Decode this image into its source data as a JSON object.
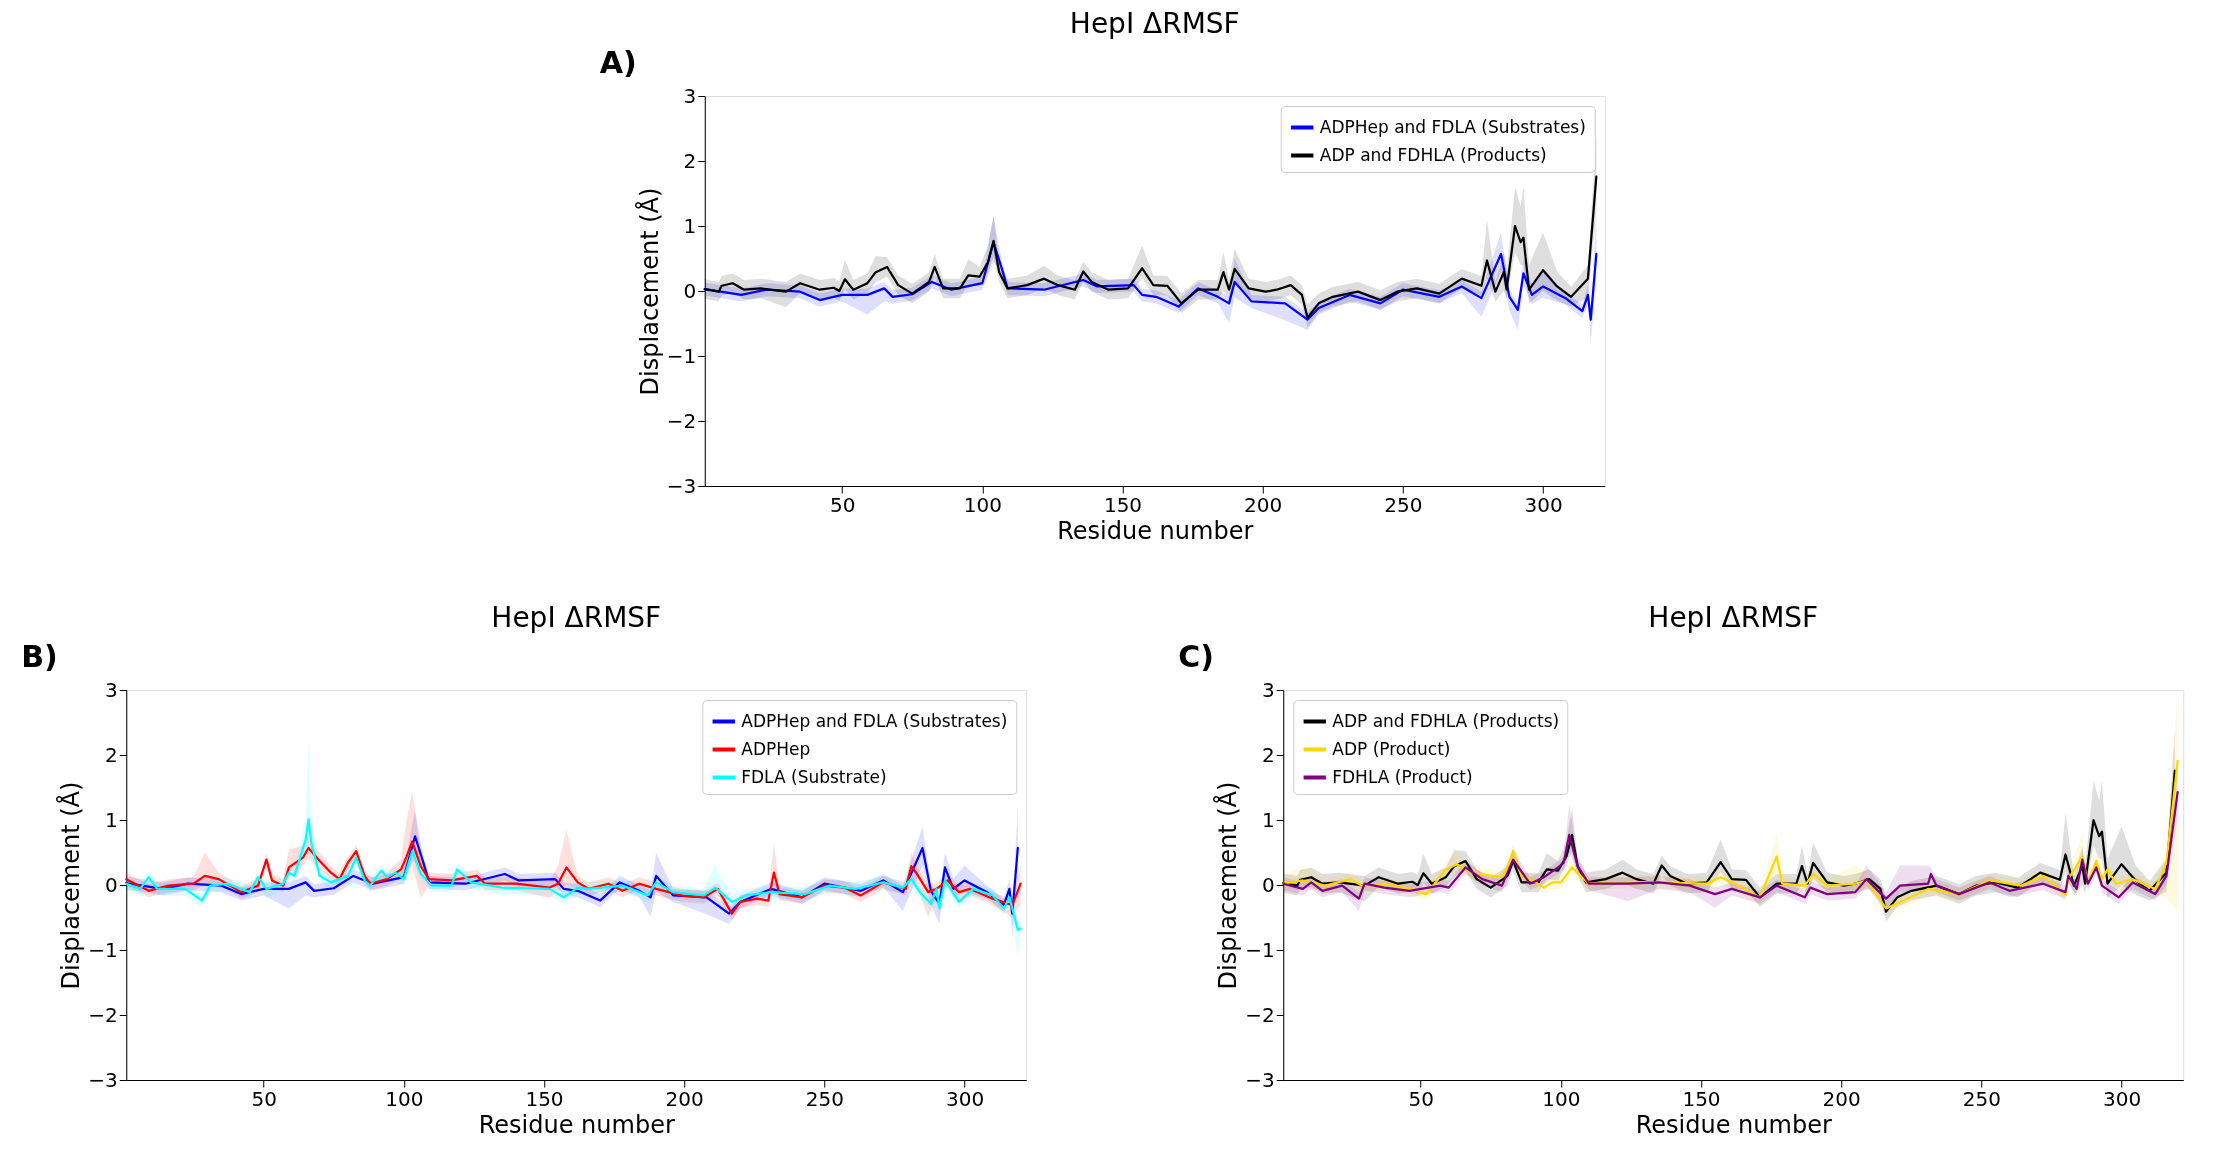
{
  "chart_data": [
    {
      "type": "line",
      "title": "HepI ΔRMSF",
      "xlabel": "Residue number",
      "ylabel": "Displacement (Å)",
      "annotations": [
        "A)"
      ],
      "xlim": [
        1,
        322
      ],
      "ylim": [
        -3,
        3
      ],
      "xticks": [
        50,
        100,
        150,
        200,
        250,
        300
      ],
      "yticks": [
        -3,
        -2,
        -1,
        0,
        1,
        2,
        3
      ],
      "legend": "top right",
      "grid": false,
      "series": [
        {
          "name": "ADPHep and FDLA (Substrates)",
          "color": "#0000ff",
          "x": [
            1,
            14,
            23,
            35,
            42,
            50,
            59,
            65,
            68,
            75,
            82,
            89,
            100,
            104,
            107,
            109,
            122,
            136,
            141,
            154,
            157,
            162,
            170,
            177,
            184,
            188,
            190,
            196,
            208,
            216,
            220,
            231,
            242,
            250,
            263,
            271,
            278,
            285,
            288,
            291,
            293,
            296,
            300,
            308,
            314,
            316,
            317,
            319
          ],
          "values": [
            0.03,
            -0.06,
            0.02,
            -0.01,
            -0.14,
            -0.06,
            -0.06,
            0.04,
            -0.09,
            -0.05,
            0.14,
            0.02,
            0.12,
            0.75,
            0.34,
            0.04,
            0.02,
            0.17,
            0.07,
            0.09,
            -0.06,
            -0.09,
            -0.24,
            0.04,
            -0.09,
            -0.19,
            0.14,
            -0.16,
            -0.19,
            -0.44,
            -0.26,
            -0.06,
            -0.19,
            0.02,
            -0.09,
            0.07,
            -0.11,
            0.57,
            -0.09,
            -0.29,
            0.27,
            -0.06,
            0.07,
            -0.11,
            -0.31,
            -0.06,
            -0.44,
            0.57
          ],
          "lower": [
            -0.07,
            -0.16,
            -0.08,
            -0.11,
            -0.24,
            -0.16,
            -0.36,
            -0.16,
            -0.19,
            -0.15,
            0.04,
            -0.08,
            0.02,
            0.45,
            0.24,
            -0.06,
            -0.08,
            0.07,
            -0.03,
            -0.01,
            -0.16,
            -0.19,
            -0.34,
            -0.06,
            -0.19,
            -0.49,
            -0.1,
            -0.26,
            -0.45,
            -0.6,
            -0.36,
            -0.16,
            -0.29,
            -0.08,
            -0.19,
            -0.03,
            -0.4,
            0.3,
            -0.3,
            -0.6,
            0.1,
            -0.2,
            -0.1,
            -0.21,
            -0.41,
            -0.2,
            -0.8,
            0.2
          ],
          "upper": [
            0.13,
            0.04,
            0.12,
            0.09,
            -0.04,
            0.04,
            0.04,
            0.14,
            0.01,
            0.05,
            0.24,
            0.12,
            0.22,
            1.15,
            0.44,
            0.14,
            0.12,
            0.27,
            0.17,
            0.19,
            0.04,
            0.01,
            -0.14,
            0.14,
            0.01,
            -0.09,
            0.5,
            -0.06,
            -0.09,
            -0.34,
            -0.16,
            0.04,
            -0.09,
            0.12,
            0.01,
            0.17,
            -0.01,
            0.9,
            0.01,
            -0.19,
            0.5,
            0.1,
            0.3,
            -0.01,
            -0.21,
            0.1,
            -0.34,
            1.2
          ]
        },
        {
          "name": "ADP and FDHLA (Products)",
          "color": "#000000",
          "x": [
            1,
            6,
            7,
            11,
            15,
            21,
            30,
            35,
            42,
            47,
            49,
            51,
            54,
            59,
            62,
            66,
            70,
            75,
            81,
            83,
            86,
            92,
            95,
            99,
            102,
            104,
            106,
            109,
            116,
            122,
            127,
            133,
            136,
            139,
            145,
            152,
            157,
            161,
            166,
            171,
            177,
            184,
            186,
            188,
            190,
            195,
            201,
            205,
            210,
            214,
            216,
            220,
            225,
            234,
            242,
            248,
            255,
            263,
            271,
            278,
            280,
            283,
            286,
            287,
            290,
            292,
            293,
            295,
            300,
            305,
            310,
            316,
            319
          ],
          "values": [
            0.03,
            -0.01,
            0.08,
            0.12,
            0.02,
            0.04,
            -0.01,
            0.12,
            0.02,
            0.05,
            0,
            0.18,
            0.02,
            0.12,
            0.29,
            0.37,
            0.09,
            -0.04,
            0.14,
            0.37,
            0.04,
            0.04,
            0.24,
            0.22,
            0.44,
            0.77,
            0.29,
            0.04,
            0.09,
            0.19,
            0.09,
            0.02,
            0.3,
            0.14,
            0.02,
            0.04,
            0.35,
            0.09,
            0.08,
            -0.19,
            0.02,
            0.02,
            0.29,
            0.02,
            0.34,
            0.04,
            -0.01,
            0.02,
            0.09,
            -0.06,
            -0.41,
            -0.19,
            -0.09,
            -0.01,
            -0.14,
            -0.01,
            0.04,
            -0.04,
            0.19,
            0.08,
            0.47,
            -0.01,
            0.29,
            0.02,
            1.0,
            0.75,
            0.82,
            0.02,
            0.32,
            0.07,
            -0.09,
            0.19,
            1.76
          ],
          "lower": [
            -0.12,
            -0.16,
            -0.07,
            -0.03,
            -0.13,
            -0.11,
            -0.25,
            -0.03,
            -0.13,
            -0.1,
            -0.15,
            0.03,
            -0.13,
            -0.03,
            0.14,
            0.22,
            -0.06,
            -0.19,
            -0.01,
            0.22,
            -0.11,
            -0.11,
            0.09,
            0.07,
            0.29,
            0.52,
            0.14,
            -0.11,
            -0.06,
            0.04,
            -0.06,
            -0.13,
            0.15,
            -0.01,
            -0.13,
            -0.11,
            0.2,
            -0.06,
            -0.07,
            -0.34,
            -0.13,
            -0.13,
            0.0,
            -0.13,
            0.1,
            -0.11,
            -0.16,
            -0.13,
            -0.06,
            -0.21,
            -0.56,
            -0.34,
            -0.24,
            -0.16,
            -0.29,
            -0.16,
            -0.11,
            -0.19,
            0.04,
            -0.07,
            0.2,
            -0.16,
            0.0,
            -0.13,
            0.6,
            0.4,
            0.4,
            -0.2,
            0.0,
            -0.15,
            -0.24,
            -0.1,
            1.2
          ],
          "upper": [
            0.18,
            0.14,
            0.23,
            0.27,
            0.17,
            0.19,
            0.14,
            0.27,
            0.17,
            0.2,
            0.15,
            0.48,
            0.17,
            0.27,
            0.54,
            0.52,
            0.24,
            0.11,
            0.29,
            0.57,
            0.19,
            0.19,
            0.49,
            0.37,
            0.69,
            1.17,
            0.44,
            0.19,
            0.24,
            0.39,
            0.24,
            0.17,
            0.45,
            0.29,
            0.17,
            0.19,
            0.7,
            0.24,
            0.23,
            -0.04,
            0.17,
            0.17,
            0.6,
            0.17,
            0.65,
            0.19,
            0.14,
            0.17,
            0.24,
            0.09,
            -0.2,
            -0.04,
            0.06,
            0.14,
            0.01,
            0.14,
            0.19,
            0.11,
            0.34,
            0.23,
            1.1,
            0.14,
            0.6,
            0.3,
            1.6,
            1.3,
            1.6,
            0.4,
            0.9,
            0.3,
            0.06,
            0.4,
            2.4
          ]
        }
      ]
    },
    {
      "type": "line",
      "title": "HepI ΔRMSF",
      "xlabel": "Residue number",
      "ylabel": "Displacement (Å)",
      "annotations": [
        "B)"
      ],
      "xlim": [
        1,
        322
      ],
      "ylim": [
        -3,
        3
      ],
      "xticks": [
        50,
        100,
        150,
        200,
        250,
        300
      ],
      "yticks": [
        -3,
        -2,
        -1,
        0,
        1,
        2,
        3
      ],
      "legend": "top right",
      "grid": false,
      "series": [
        {
          "name": "ADPHep and FDLA (Substrates)",
          "color": "#0000ff",
          "x": [
            1,
            14,
            23,
            35,
            42,
            50,
            59,
            65,
            68,
            75,
            82,
            89,
            100,
            104,
            107,
            109,
            122,
            136,
            141,
            154,
            157,
            162,
            170,
            177,
            184,
            188,
            190,
            196,
            208,
            216,
            220,
            231,
            242,
            250,
            263,
            271,
            278,
            285,
            288,
            291,
            293,
            296,
            300,
            308,
            314,
            316,
            317,
            319
          ],
          "values": [
            0.03,
            -0.06,
            0.02,
            -0.01,
            -0.14,
            -0.06,
            -0.06,
            0.04,
            -0.09,
            -0.05,
            0.14,
            0.02,
            0.12,
            0.75,
            0.34,
            0.04,
            0.02,
            0.17,
            0.07,
            0.09,
            -0.06,
            -0.09,
            -0.24,
            0.04,
            -0.09,
            -0.19,
            0.14,
            -0.16,
            -0.19,
            -0.44,
            -0.26,
            -0.06,
            -0.19,
            0.02,
            -0.09,
            0.07,
            -0.11,
            0.57,
            -0.09,
            -0.29,
            0.27,
            -0.06,
            0.07,
            -0.11,
            -0.31,
            -0.06,
            -0.44,
            0.57
          ],
          "lower": [
            -0.07,
            -0.16,
            -0.08,
            -0.11,
            -0.24,
            -0.16,
            -0.36,
            -0.16,
            -0.19,
            -0.15,
            0.04,
            -0.08,
            0.02,
            0.45,
            0.24,
            -0.06,
            -0.08,
            0.07,
            -0.03,
            -0.01,
            -0.16,
            -0.19,
            -0.34,
            -0.06,
            -0.19,
            -0.49,
            -0.1,
            -0.26,
            -0.45,
            -0.6,
            -0.36,
            -0.16,
            -0.29,
            -0.08,
            -0.19,
            -0.03,
            -0.4,
            0.3,
            -0.3,
            -0.6,
            0.1,
            -0.2,
            -0.1,
            -0.21,
            -0.41,
            -0.2,
            -0.8,
            0.2
          ],
          "upper": [
            0.13,
            0.04,
            0.12,
            0.09,
            -0.04,
            0.04,
            0.04,
            0.14,
            0.01,
            0.05,
            0.24,
            0.12,
            0.22,
            1.15,
            0.44,
            0.14,
            0.12,
            0.27,
            0.17,
            0.19,
            0.04,
            0.01,
            -0.14,
            0.14,
            0.01,
            -0.09,
            0.5,
            -0.06,
            -0.09,
            -0.34,
            -0.16,
            0.04,
            -0.09,
            0.12,
            0.01,
            0.17,
            -0.01,
            0.9,
            0.01,
            -0.19,
            0.5,
            0.1,
            0.3,
            -0.01,
            -0.21,
            0.1,
            -0.34,
            1.2
          ]
        },
        {
          "name": "ADPHep",
          "color": "#ff0000",
          "x": [
            1,
            9,
            16,
            25,
            29,
            34,
            42,
            48,
            51,
            53,
            57,
            59,
            64,
            66,
            70,
            74,
            77,
            80,
            83,
            86,
            88,
            94,
            99,
            101,
            103,
            106,
            109,
            117,
            126,
            129,
            140,
            152,
            155,
            158,
            162,
            166,
            173,
            178,
            184,
            190,
            199,
            207,
            212,
            217,
            220,
            226,
            230,
            232,
            234,
            242,
            250,
            257,
            263,
            271,
            279,
            281,
            283,
            287,
            290,
            294,
            298,
            302,
            310,
            317,
            320
          ],
          "values": [
            0.09,
            -0.09,
            -0.01,
            0.02,
            0.14,
            0.09,
            -0.11,
            -0.01,
            0.39,
            0.07,
            -0.01,
            0.27,
            0.42,
            0.57,
            0.37,
            0.19,
            0.09,
            0.34,
            0.52,
            0.14,
            0.02,
            0.09,
            0.24,
            0.44,
            0.67,
            0.29,
            0.09,
            0.07,
            0.14,
            0.02,
            0.02,
            -0.04,
            0.02,
            0.27,
            0.04,
            -0.06,
            0.02,
            -0.09,
            0.02,
            -0.06,
            -0.16,
            -0.19,
            -0.06,
            -0.44,
            -0.26,
            -0.21,
            -0.24,
            0.19,
            -0.14,
            -0.19,
            -0.01,
            -0.04,
            -0.16,
            0.04,
            -0.06,
            0.29,
            0.17,
            -0.11,
            -0.06,
            0.07,
            -0.11,
            -0.06,
            -0.21,
            -0.31,
            0.02
          ],
          "lower": [
            -0.01,
            -0.19,
            -0.11,
            -0.08,
            0.0,
            -0.01,
            -0.21,
            -0.11,
            0.29,
            -0.03,
            -0.11,
            0.1,
            0.3,
            0.4,
            0.25,
            0.09,
            -0.01,
            0.2,
            0.4,
            0.04,
            -0.08,
            -0.01,
            0.1,
            0.2,
            0.3,
            -0.2,
            -0.01,
            -0.03,
            0.04,
            -0.08,
            -0.08,
            -0.2,
            -0.1,
            0.0,
            -0.06,
            -0.16,
            -0.08,
            -0.19,
            -0.08,
            -0.16,
            -0.26,
            -0.29,
            -0.16,
            -0.54,
            -0.36,
            -0.31,
            -0.34,
            0.0,
            -0.24,
            -0.29,
            -0.11,
            -0.14,
            -0.26,
            -0.06,
            -0.16,
            0.1,
            0.0,
            -0.5,
            -0.16,
            -0.03,
            -0.21,
            -0.16,
            -0.31,
            -0.5,
            -0.3
          ],
          "upper": [
            0.19,
            0.01,
            0.09,
            0.12,
            0.5,
            0.19,
            -0.01,
            0.09,
            0.49,
            0.17,
            0.09,
            0.55,
            0.6,
            0.7,
            0.5,
            0.29,
            0.19,
            0.44,
            0.62,
            0.24,
            0.12,
            0.19,
            0.4,
            1.0,
            1.45,
            0.5,
            0.19,
            0.17,
            0.24,
            0.12,
            0.12,
            0.06,
            0.3,
            0.85,
            0.14,
            0.04,
            0.12,
            0.01,
            0.12,
            0.04,
            -0.06,
            -0.09,
            0.04,
            -0.34,
            -0.16,
            -0.11,
            -0.14,
            0.65,
            -0.04,
            -0.09,
            0.09,
            0.06,
            -0.06,
            0.14,
            0.04,
            0.5,
            0.3,
            0.01,
            0.04,
            0.17,
            -0.01,
            0.04,
            -0.11,
            -0.21,
            0.3
          ]
        },
        {
          "name": "FDLA (Substrate)",
          "color": "#00ffff",
          "x": [
            1,
            6,
            9,
            12,
            22,
            28,
            31,
            37,
            45,
            48,
            51,
            57,
            59,
            61,
            65,
            66,
            67,
            70,
            74,
            80,
            83,
            86,
            88,
            92,
            94,
            97,
            100,
            103,
            106,
            110,
            117,
            119,
            124,
            135,
            152,
            157,
            162,
            166,
            178,
            187,
            190,
            196,
            207,
            211,
            217,
            222,
            231,
            243,
            252,
            261,
            271,
            278,
            281,
            284,
            288,
            290,
            291,
            293,
            298,
            303,
            310,
            314,
            316,
            319,
            320
          ],
          "values": [
            0.02,
            -0.06,
            0.12,
            -0.06,
            -0.06,
            -0.24,
            -0.01,
            0.02,
            -0.11,
            0.12,
            -0.06,
            0.02,
            0.19,
            0.14,
            0.7,
            1.01,
            0.65,
            0.14,
            0.04,
            0.14,
            0.42,
            0.07,
            -0.01,
            0.22,
            0.12,
            0.19,
            0.09,
            0.52,
            0.17,
            -0.01,
            -0.01,
            0.24,
            0.04,
            -0.04,
            -0.06,
            -0.19,
            -0.04,
            -0.06,
            -0.01,
            -0.16,
            0.04,
            -0.11,
            -0.16,
            -0.04,
            -0.26,
            -0.16,
            -0.11,
            -0.14,
            -0.01,
            -0.06,
            0.04,
            -0.04,
            0.09,
            -0.11,
            -0.29,
            -0.06,
            -0.36,
            0.07,
            -0.26,
            -0.06,
            -0.16,
            -0.36,
            -0.19,
            -0.69,
            -0.67
          ],
          "lower": [
            -0.08,
            -0.16,
            0.02,
            -0.16,
            -0.16,
            -0.34,
            -0.11,
            -0.08,
            -0.21,
            0.02,
            -0.2,
            -0.08,
            0.09,
            0.04,
            0.4,
            0.6,
            0.4,
            0.04,
            -0.06,
            0.04,
            0.32,
            -0.03,
            -0.11,
            0.12,
            0.02,
            0.09,
            -0.01,
            0.42,
            0.07,
            -0.11,
            -0.11,
            0.14,
            -0.06,
            -0.14,
            -0.16,
            -0.29,
            -0.14,
            -0.16,
            -0.11,
            -0.26,
            -0.06,
            -0.21,
            -0.26,
            -0.14,
            -0.36,
            -0.26,
            -0.21,
            -0.24,
            -0.11,
            -0.16,
            -0.06,
            -0.14,
            -0.01,
            -0.21,
            -0.39,
            -0.16,
            -0.46,
            -0.03,
            -0.36,
            -0.16,
            -0.26,
            -0.46,
            -0.29,
            -1.1,
            -0.77
          ],
          "upper": [
            0.12,
            0.04,
            0.22,
            0.04,
            0.04,
            -0.14,
            0.09,
            0.12,
            -0.01,
            0.22,
            0.04,
            0.12,
            0.29,
            0.24,
            1.0,
            2.2,
            0.9,
            0.24,
            0.14,
            0.24,
            0.52,
            0.17,
            0.09,
            0.32,
            0.22,
            0.29,
            0.19,
            0.62,
            0.27,
            0.09,
            0.09,
            0.34,
            0.14,
            0.06,
            0.04,
            -0.09,
            0.06,
            0.04,
            0.09,
            -0.06,
            0.14,
            -0.01,
            -0.06,
            0.3,
            -0.16,
            -0.06,
            -0.01,
            -0.04,
            0.09,
            0.04,
            0.14,
            0.06,
            0.19,
            -0.01,
            -0.19,
            0.04,
            -0.26,
            0.17,
            -0.16,
            0.04,
            -0.06,
            -0.26,
            -0.09,
            -0.59,
            -0.57
          ]
        }
      ]
    },
    {
      "type": "line",
      "title": "HepI ΔRMSF",
      "xlabel": "Residue number",
      "ylabel": "Displacement (Å)",
      "annotations": [
        "C)"
      ],
      "xlim": [
        1,
        322
      ],
      "ylim": [
        -3,
        3
      ],
      "xticks": [
        50,
        100,
        150,
        200,
        250,
        300
      ],
      "yticks": [
        -3,
        -2,
        -1,
        0,
        1,
        2,
        3
      ],
      "legend": "top left",
      "grid": false,
      "series": [
        {
          "name": "ADP and FDHLA (Products)",
          "color": "#000000",
          "x": [
            1,
            6,
            7,
            11,
            15,
            21,
            30,
            35,
            42,
            47,
            49,
            51,
            54,
            59,
            62,
            66,
            70,
            75,
            81,
            83,
            86,
            92,
            95,
            99,
            102,
            104,
            106,
            109,
            116,
            122,
            127,
            133,
            136,
            139,
            145,
            152,
            157,
            161,
            166,
            171,
            177,
            184,
            186,
            188,
            190,
            195,
            201,
            205,
            210,
            214,
            216,
            220,
            225,
            234,
            242,
            248,
            255,
            263,
            271,
            278,
            280,
            283,
            286,
            287,
            290,
            292,
            293,
            295,
            300,
            305,
            310,
            316,
            319
          ],
          "values": [
            0.03,
            -0.01,
            0.08,
            0.12,
            0.02,
            0.04,
            -0.01,
            0.12,
            0.02,
            0.05,
            0,
            0.18,
            0.02,
            0.12,
            0.29,
            0.37,
            0.09,
            -0.04,
            0.14,
            0.37,
            0.04,
            0.04,
            0.24,
            0.22,
            0.44,
            0.77,
            0.29,
            0.04,
            0.09,
            0.19,
            0.09,
            0.02,
            0.3,
            0.14,
            0.02,
            0.04,
            0.35,
            0.09,
            0.08,
            -0.19,
            0.02,
            0.02,
            0.29,
            0.02,
            0.34,
            0.04,
            -0.01,
            0.02,
            0.09,
            -0.06,
            -0.41,
            -0.19,
            -0.09,
            -0.01,
            -0.14,
            -0.01,
            0.04,
            -0.04,
            0.19,
            0.08,
            0.47,
            -0.01,
            0.29,
            0.02,
            1.0,
            0.75,
            0.82,
            0.02,
            0.32,
            0.07,
            -0.09,
            0.19,
            1.76
          ],
          "lower": [
            -0.12,
            -0.16,
            -0.07,
            -0.03,
            -0.13,
            -0.11,
            -0.25,
            -0.03,
            -0.13,
            -0.1,
            -0.15,
            0.03,
            -0.13,
            -0.03,
            0.14,
            0.22,
            -0.06,
            -0.19,
            -0.01,
            0.22,
            -0.11,
            -0.11,
            0.09,
            0.07,
            0.29,
            0.52,
            0.14,
            -0.11,
            -0.06,
            0.04,
            -0.06,
            -0.13,
            0.15,
            -0.01,
            -0.13,
            -0.11,
            0.2,
            -0.06,
            -0.07,
            -0.34,
            -0.13,
            -0.13,
            0.0,
            -0.13,
            0.1,
            -0.11,
            -0.16,
            -0.13,
            -0.06,
            -0.21,
            -0.56,
            -0.34,
            -0.24,
            -0.16,
            -0.29,
            -0.16,
            -0.11,
            -0.19,
            0.04,
            -0.07,
            0.2,
            -0.16,
            0.0,
            -0.13,
            0.6,
            0.4,
            0.4,
            -0.2,
            0.0,
            -0.15,
            -0.24,
            -0.1,
            1.2
          ],
          "upper": [
            0.18,
            0.14,
            0.23,
            0.27,
            0.17,
            0.19,
            0.14,
            0.27,
            0.17,
            0.2,
            0.15,
            0.48,
            0.17,
            0.27,
            0.54,
            0.52,
            0.24,
            0.11,
            0.29,
            0.57,
            0.19,
            0.19,
            0.49,
            0.37,
            0.69,
            1.17,
            0.44,
            0.19,
            0.24,
            0.39,
            0.24,
            0.17,
            0.45,
            0.29,
            0.17,
            0.19,
            0.7,
            0.24,
            0.23,
            -0.04,
            0.17,
            0.17,
            0.6,
            0.17,
            0.65,
            0.19,
            0.14,
            0.17,
            0.24,
            0.09,
            -0.2,
            -0.04,
            0.06,
            0.14,
            0.01,
            0.14,
            0.19,
            0.11,
            0.34,
            0.23,
            1.1,
            0.14,
            0.6,
            0.3,
            1.6,
            1.3,
            1.6,
            0.4,
            0.9,
            0.3,
            0.06,
            0.4,
            2.4
          ]
        },
        {
          "name": "ADP (Product)",
          "color": "#ffd700",
          "x": [
            1,
            8,
            16,
            25,
            29,
            37,
            46,
            52,
            55,
            59,
            63,
            66,
            70,
            79,
            81,
            83,
            86,
            91,
            94,
            97,
            100,
            104,
            107,
            110,
            124,
            135,
            152,
            157,
            161,
            171,
            177,
            179,
            187,
            190,
            195,
            205,
            209,
            216,
            221,
            231,
            242,
            253,
            264,
            272,
            280,
            281,
            286,
            288,
            291,
            293,
            295,
            298,
            304,
            312,
            316,
            320
          ],
          "values": [
            0.02,
            0.07,
            -0.01,
            0.09,
            -0.01,
            0.02,
            -0.06,
            -0.14,
            0.02,
            0.24,
            0.32,
            0.24,
            0.17,
            0.12,
            0.29,
            0.52,
            0.14,
            0.04,
            -0.04,
            0.04,
            0.04,
            0.27,
            0.14,
            0.02,
            0.05,
            0.04,
            0.02,
            0.12,
            0.04,
            -0.19,
            0.44,
            0.02,
            -0.01,
            0.17,
            -0.01,
            0.02,
            0.07,
            -0.36,
            -0.26,
            -0.06,
            -0.14,
            0.07,
            -0.01,
            0.14,
            -0.16,
            0.09,
            0.44,
            0.04,
            0.37,
            0.09,
            0.24,
            0.02,
            0.09,
            -0.06,
            0.34,
            1.91
          ],
          "lower": [
            -0.08,
            -0.03,
            -0.11,
            -0.01,
            -0.11,
            -0.08,
            -0.16,
            -0.24,
            -0.08,
            0.14,
            0.2,
            0.14,
            0.07,
            0.02,
            0.19,
            0.42,
            0.04,
            -0.06,
            -0.14,
            -0.06,
            -0.06,
            0.17,
            0.04,
            -0.08,
            -0.05,
            -0.06,
            -0.08,
            0.02,
            -0.06,
            -0.29,
            0.2,
            -0.08,
            -0.11,
            0.07,
            -0.11,
            -0.15,
            -0.03,
            -0.46,
            -0.36,
            -0.16,
            -0.24,
            -0.03,
            -0.11,
            0.04,
            -0.26,
            -0.01,
            0.3,
            -0.06,
            0.27,
            -0.01,
            0.14,
            -0.08,
            -0.01,
            -0.16,
            -0.2,
            -0.4
          ],
          "upper": [
            0.12,
            0.3,
            0.09,
            0.19,
            0.09,
            0.12,
            0.04,
            -0.04,
            0.12,
            0.34,
            0.55,
            0.34,
            0.27,
            0.22,
            0.39,
            0.62,
            0.24,
            0.14,
            0.06,
            0.14,
            0.14,
            0.37,
            0.24,
            0.12,
            0.15,
            0.14,
            0.12,
            0.22,
            0.14,
            -0.09,
            0.8,
            0.12,
            0.09,
            0.27,
            0.09,
            0.3,
            0.17,
            -0.26,
            -0.16,
            0.04,
            -0.04,
            0.17,
            0.09,
            0.24,
            -0.06,
            0.19,
            0.8,
            0.14,
            0.5,
            0.19,
            0.34,
            0.12,
            0.19,
            0.04,
            0.6,
            3.0
          ]
        },
        {
          "name": "FDHLA (Product)",
          "color": "#800080",
          "x": [
            1,
            8,
            11,
            15,
            22,
            28,
            30,
            37,
            46,
            57,
            60,
            66,
            72,
            79,
            83,
            89,
            94,
            99,
            101,
            103,
            106,
            110,
            124,
            135,
            146,
            155,
            161,
            171,
            177,
            187,
            189,
            195,
            205,
            209,
            216,
            221,
            231,
            232,
            234,
            242,
            253,
            260,
            272,
            280,
            281,
            284,
            286,
            288,
            291,
            293,
            299,
            304,
            312,
            316,
            320
          ],
          "values": [
            0.02,
            -0.06,
            0.04,
            -0.09,
            -0.01,
            -0.21,
            0.02,
            -0.04,
            -0.09,
            -0.01,
            -0.04,
            0.27,
            0.09,
            -0.01,
            0.39,
            0.02,
            0.12,
            0.27,
            0.34,
            0.77,
            0.29,
            0.02,
            0.02,
            0.04,
            -0.01,
            -0.14,
            -0.06,
            -0.19,
            -0.01,
            -0.19,
            -0.04,
            -0.14,
            -0.11,
            0.09,
            -0.21,
            -0.01,
            0.02,
            0.17,
            -0.01,
            -0.14,
            0.04,
            -0.09,
            0.02,
            -0.11,
            0.14,
            -0.06,
            0.39,
            0.02,
            0.27,
            -0.01,
            -0.19,
            0.04,
            -0.14,
            0.14,
            1.43
          ],
          "lower": [
            -0.08,
            -0.16,
            -0.06,
            -0.19,
            -0.11,
            -0.4,
            -0.08,
            -0.14,
            -0.19,
            -0.11,
            -0.14,
            0.17,
            -0.01,
            -0.11,
            0.29,
            -0.08,
            0.02,
            0.17,
            0.24,
            0.5,
            0.19,
            -0.08,
            -0.25,
            -0.06,
            -0.11,
            -0.35,
            -0.16,
            -0.29,
            -0.11,
            -0.29,
            -0.14,
            -0.24,
            -0.21,
            -0.01,
            -0.4,
            -0.11,
            -0.08,
            0.07,
            -0.11,
            -0.24,
            -0.06,
            -0.19,
            -0.08,
            -0.21,
            0.04,
            -0.16,
            0.29,
            -0.08,
            0.17,
            -0.11,
            -0.29,
            -0.06,
            -0.24,
            0.0,
            1.0
          ],
          "upper": [
            0.12,
            0.04,
            0.14,
            0.01,
            0.09,
            -0.11,
            0.12,
            0.06,
            0.01,
            0.09,
            0.06,
            0.37,
            0.19,
            0.09,
            0.55,
            0.12,
            0.22,
            0.37,
            0.44,
            1.25,
            0.39,
            0.12,
            0.12,
            0.14,
            0.09,
            -0.04,
            0.04,
            -0.09,
            0.09,
            -0.09,
            0.06,
            -0.04,
            -0.01,
            0.3,
            -0.11,
            0.3,
            0.3,
            0.27,
            0.09,
            -0.04,
            0.14,
            0.01,
            0.12,
            -0.01,
            0.24,
            0.04,
            0.5,
            0.12,
            0.37,
            0.09,
            -0.09,
            0.14,
            -0.04,
            0.3,
            1.9
          ]
        }
      ]
    }
  ]
}
